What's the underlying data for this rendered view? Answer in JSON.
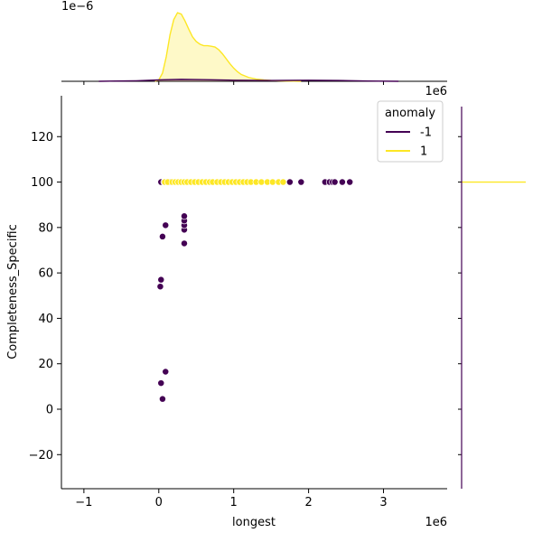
{
  "chart_data": {
    "type": "scatter",
    "kind": "jointplot",
    "xlabel": "longest",
    "ylabel": "Completeness_Specific",
    "x_offset_text": "1e6",
    "y_offset_text": "",
    "xlim": [
      -1.3,
      3.85
    ],
    "ylim": [
      -35,
      138
    ],
    "xticks": [
      -1,
      0,
      1,
      2,
      3
    ],
    "yticks": [
      -20,
      0,
      20,
      40,
      60,
      80,
      100,
      120
    ],
    "grid": false,
    "legend": {
      "title": "anomaly",
      "placement": "top-right",
      "entries": [
        {
          "label": "-1",
          "color": "#440154"
        },
        {
          "label": "1",
          "color": "#fde725"
        }
      ]
    },
    "series": [
      {
        "name": "-1",
        "color": "#440154",
        "points": [
          [
            0.02,
            54
          ],
          [
            0.03,
            57
          ],
          [
            0.05,
            76
          ],
          [
            0.09,
            81
          ],
          [
            0.03,
            11.5
          ],
          [
            0.05,
            4.5
          ],
          [
            0.09,
            16.5
          ],
          [
            0.34,
            73
          ],
          [
            0.34,
            79
          ],
          [
            0.34,
            81
          ],
          [
            0.34,
            83
          ],
          [
            0.34,
            85
          ],
          [
            0.03,
            100
          ],
          [
            0.07,
            100
          ],
          [
            0.15,
            100
          ],
          [
            0.2,
            100
          ],
          [
            1.75,
            100
          ],
          [
            1.9,
            100
          ],
          [
            2.22,
            100
          ],
          [
            2.28,
            100
          ],
          [
            2.32,
            100
          ],
          [
            2.35,
            100
          ],
          [
            2.45,
            100
          ],
          [
            2.55,
            100
          ]
        ]
      },
      {
        "name": "1",
        "color": "#fde725",
        "points": [
          [
            0.08,
            100
          ],
          [
            0.12,
            100
          ],
          [
            0.18,
            100
          ],
          [
            0.22,
            100
          ],
          [
            0.26,
            100
          ],
          [
            0.3,
            100
          ],
          [
            0.34,
            100
          ],
          [
            0.38,
            100
          ],
          [
            0.43,
            100
          ],
          [
            0.48,
            100
          ],
          [
            0.53,
            100
          ],
          [
            0.58,
            100
          ],
          [
            0.63,
            100
          ],
          [
            0.68,
            100
          ],
          [
            0.72,
            100
          ],
          [
            0.78,
            100
          ],
          [
            0.83,
            100
          ],
          [
            0.88,
            100
          ],
          [
            0.93,
            100
          ],
          [
            0.98,
            100
          ],
          [
            1.03,
            100
          ],
          [
            1.08,
            100
          ],
          [
            1.13,
            100
          ],
          [
            1.18,
            100
          ],
          [
            1.23,
            100
          ],
          [
            1.3,
            100
          ],
          [
            1.37,
            100
          ],
          [
            1.45,
            100
          ],
          [
            1.52,
            100
          ],
          [
            1.6,
            100
          ],
          [
            1.66,
            100
          ]
        ]
      }
    ],
    "marginal_x": {
      "offset_text": "1e−6",
      "ylim_max": 2.7,
      "curves": [
        {
          "name": "1",
          "color": "#fde725",
          "x": [
            -0.05,
            0.0,
            0.05,
            0.1,
            0.15,
            0.2,
            0.25,
            0.3,
            0.35,
            0.4,
            0.45,
            0.5,
            0.55,
            0.6,
            0.65,
            0.7,
            0.75,
            0.8,
            0.85,
            0.9,
            0.95,
            1.0,
            1.05,
            1.1,
            1.2,
            1.3,
            1.4,
            1.5,
            1.6,
            1.7,
            1.8,
            1.9
          ],
          "y": [
            0,
            0.05,
            0.3,
            0.9,
            1.7,
            2.25,
            2.5,
            2.45,
            2.2,
            1.9,
            1.62,
            1.45,
            1.35,
            1.3,
            1.3,
            1.28,
            1.25,
            1.15,
            1.0,
            0.82,
            0.64,
            0.48,
            0.35,
            0.25,
            0.14,
            0.08,
            0.05,
            0.03,
            0.02,
            0.01,
            0.005,
            0
          ]
        },
        {
          "name": "-1",
          "color": "#440154",
          "x": [
            -0.8,
            -0.3,
            0.0,
            0.3,
            0.6,
            1.0,
            1.5,
            2.0,
            2.4,
            2.8,
            3.2
          ],
          "y": [
            0,
            0.02,
            0.05,
            0.07,
            0.06,
            0.04,
            0.03,
            0.04,
            0.03,
            0.01,
            0
          ]
        }
      ]
    },
    "marginal_y": {
      "curves": [
        {
          "name": "1",
          "color": "#fde725",
          "y": 100,
          "extent": 1.0
        },
        {
          "name": "-1",
          "color": "#440154",
          "y": 100,
          "extent": 0.0
        }
      ]
    }
  }
}
